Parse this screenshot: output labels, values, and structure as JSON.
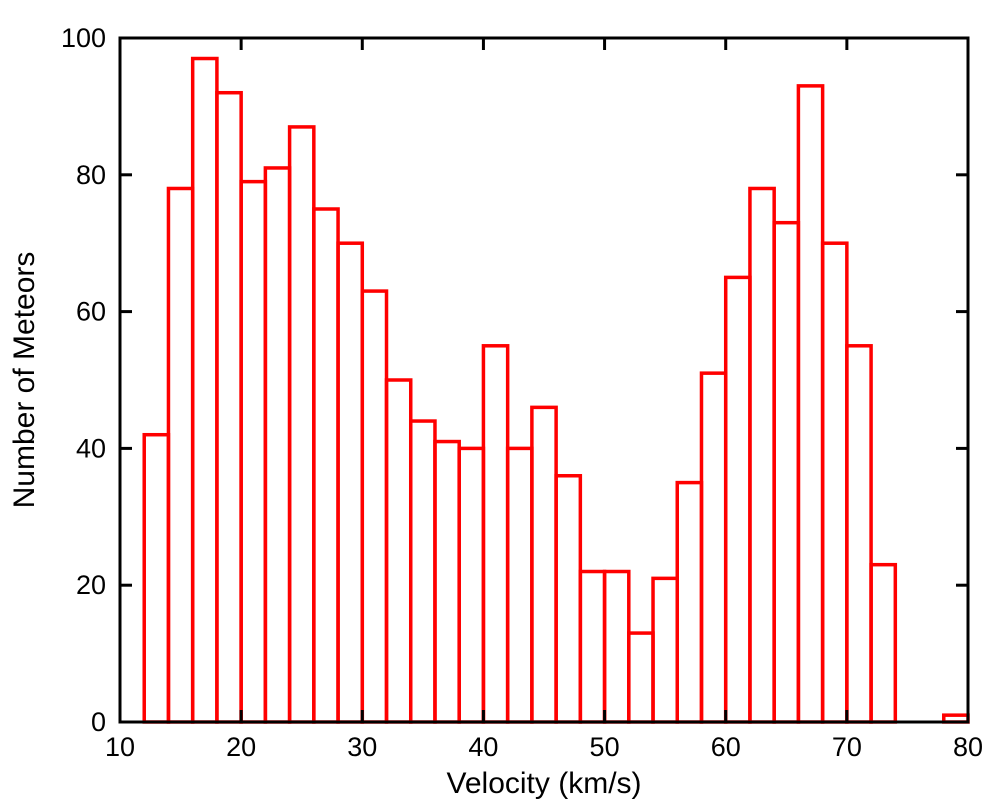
{
  "chart_data": {
    "type": "bar",
    "title": "",
    "xlabel": "Velocity (km/s)",
    "ylabel": "Number of Meteors",
    "xlim": [
      10,
      80
    ],
    "ylim": [
      0,
      100
    ],
    "bin_width": 2,
    "bins": [
      {
        "x0": 12,
        "x1": 14,
        "count": 42
      },
      {
        "x0": 14,
        "x1": 16,
        "count": 78
      },
      {
        "x0": 16,
        "x1": 18,
        "count": 97
      },
      {
        "x0": 18,
        "x1": 20,
        "count": 92
      },
      {
        "x0": 20,
        "x1": 22,
        "count": 79
      },
      {
        "x0": 22,
        "x1": 24,
        "count": 81
      },
      {
        "x0": 24,
        "x1": 26,
        "count": 87
      },
      {
        "x0": 26,
        "x1": 28,
        "count": 75
      },
      {
        "x0": 28,
        "x1": 30,
        "count": 70
      },
      {
        "x0": 30,
        "x1": 32,
        "count": 63
      },
      {
        "x0": 32,
        "x1": 34,
        "count": 50
      },
      {
        "x0": 34,
        "x1": 36,
        "count": 44
      },
      {
        "x0": 36,
        "x1": 38,
        "count": 41
      },
      {
        "x0": 38,
        "x1": 40,
        "count": 40
      },
      {
        "x0": 40,
        "x1": 42,
        "count": 55
      },
      {
        "x0": 42,
        "x1": 44,
        "count": 40
      },
      {
        "x0": 44,
        "x1": 46,
        "count": 46
      },
      {
        "x0": 46,
        "x1": 48,
        "count": 36
      },
      {
        "x0": 48,
        "x1": 50,
        "count": 22
      },
      {
        "x0": 50,
        "x1": 52,
        "count": 22
      },
      {
        "x0": 52,
        "x1": 54,
        "count": 13
      },
      {
        "x0": 54,
        "x1": 56,
        "count": 21
      },
      {
        "x0": 56,
        "x1": 58,
        "count": 35
      },
      {
        "x0": 58,
        "x1": 60,
        "count": 51
      },
      {
        "x0": 60,
        "x1": 62,
        "count": 65
      },
      {
        "x0": 62,
        "x1": 64,
        "count": 78
      },
      {
        "x0": 64,
        "x1": 66,
        "count": 73
      },
      {
        "x0": 66,
        "x1": 68,
        "count": 93
      },
      {
        "x0": 68,
        "x1": 70,
        "count": 70
      },
      {
        "x0": 70,
        "x1": 72,
        "count": 55
      },
      {
        "x0": 72,
        "x1": 74,
        "count": 23
      },
      {
        "x0": 74,
        "x1": 76,
        "count": 0
      },
      {
        "x0": 76,
        "x1": 78,
        "count": 0
      },
      {
        "x0": 78,
        "x1": 80,
        "count": 1
      }
    ],
    "xticks": [
      10,
      20,
      30,
      40,
      50,
      60,
      70,
      80
    ],
    "yticks": [
      0,
      20,
      40,
      60,
      80,
      100
    ],
    "grid": false,
    "bar_style": "unfilled",
    "bar_color": "#ff0000"
  }
}
